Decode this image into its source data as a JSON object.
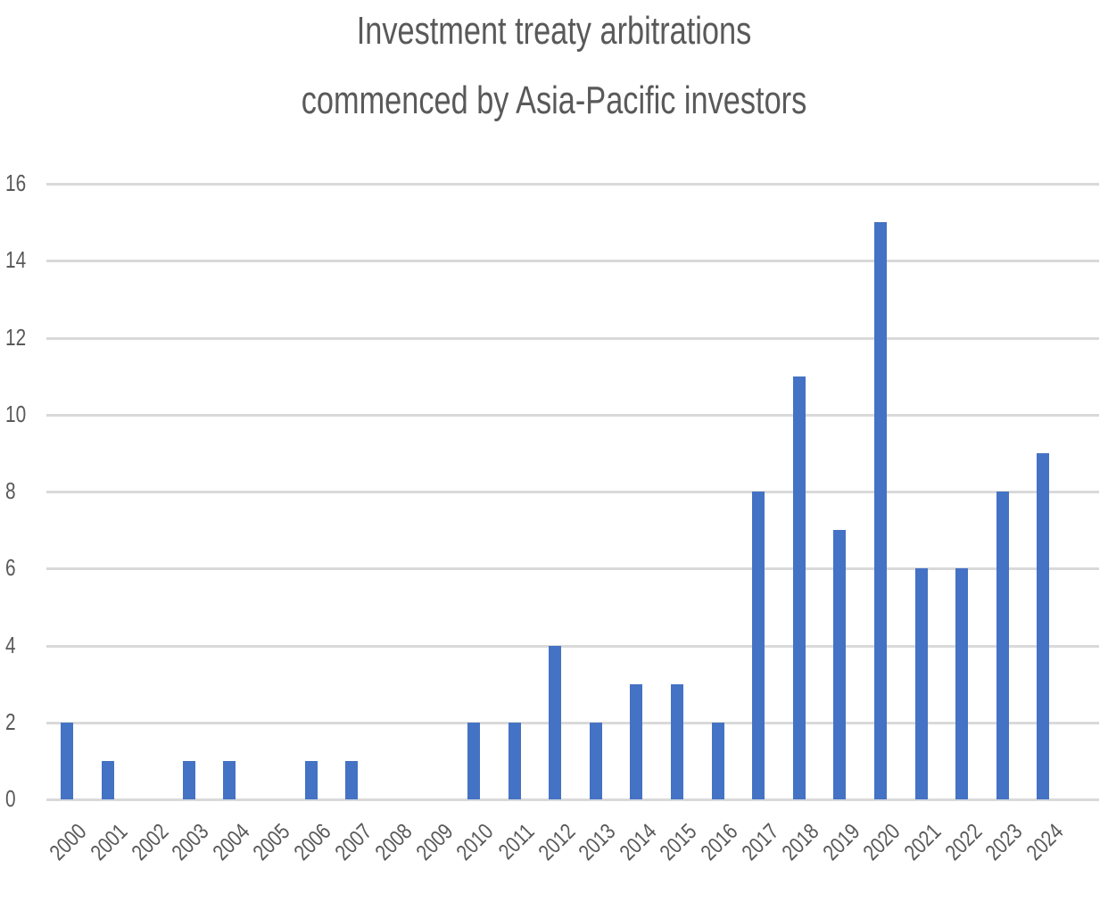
{
  "chart_data": {
    "type": "bar",
    "title": "Investment treaty arbitrations commenced by Asia-Pacific investors",
    "title_lines": [
      "Investment treaty arbitrations",
      "commenced by Asia-Pacific investors"
    ],
    "xlabel": "",
    "ylabel": "",
    "categories": [
      "2000",
      "2001",
      "2002",
      "2003",
      "2004",
      "2005",
      "2006",
      "2007",
      "2008",
      "2009",
      "2010",
      "2011",
      "2012",
      "2013",
      "2014",
      "2015",
      "2016",
      "2017",
      "2018",
      "2019",
      "2020",
      "2021",
      "2022",
      "2023",
      "2024"
    ],
    "values": [
      2,
      1,
      0,
      1,
      1,
      0,
      1,
      1,
      0,
      0,
      2,
      2,
      4,
      2,
      3,
      3,
      2,
      8,
      11,
      7,
      15,
      6,
      6,
      8,
      9
    ],
    "ylim": [
      0,
      16
    ],
    "yticks": [
      0,
      2,
      4,
      6,
      8,
      10,
      12,
      14,
      16
    ],
    "grid": true,
    "legend": null,
    "bar_color": "#4472c4"
  }
}
